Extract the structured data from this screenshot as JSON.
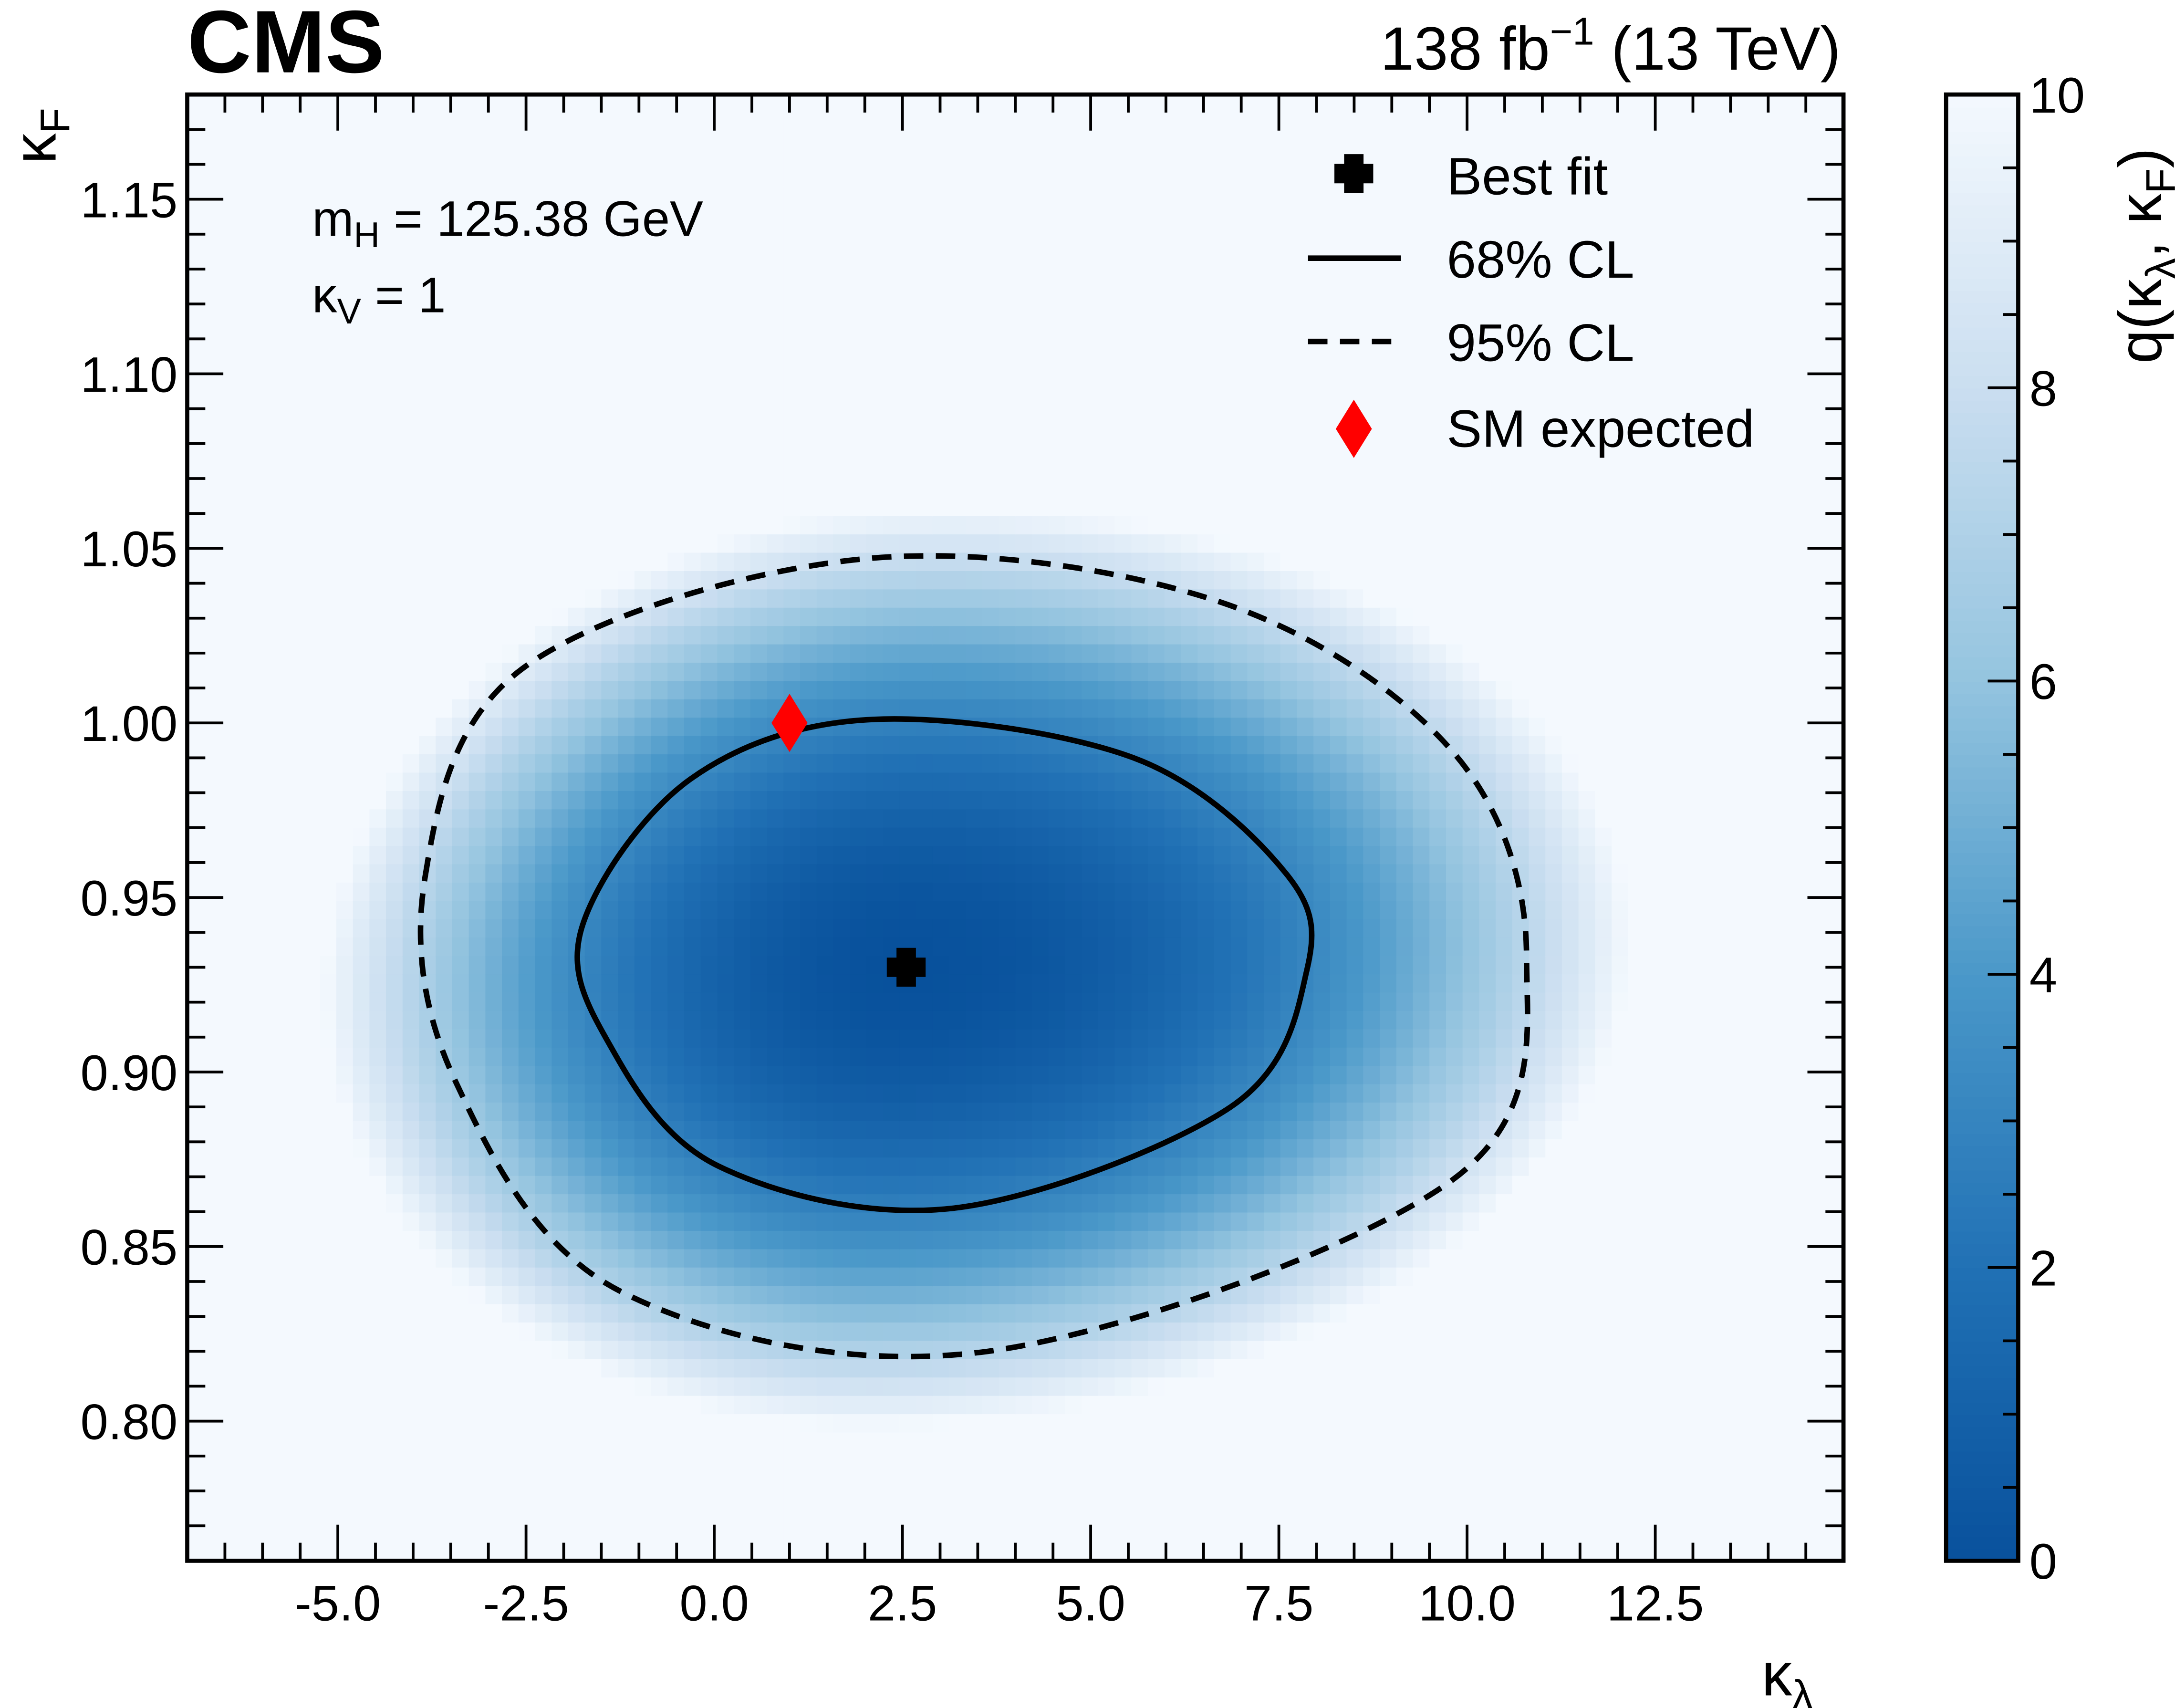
{
  "chart_data": {
    "type": "heatmap",
    "experiment": "CMS",
    "lumi_label": "138 fb",
    "lumi_exp": "−1",
    "energy_label": " (13 TeV)",
    "xlabel": "κ",
    "xlabel_sub": "λ",
    "ylabel": "κ",
    "ylabel_sub": "F",
    "zlabel": "q(κ",
    "zlabel_sub1": "λ",
    "zlabel_mid": ", κ",
    "zlabel_sub2": "F",
    "zlabel_end": ")",
    "xlim": [
      -7,
      15
    ],
    "ylim": [
      0.76,
      1.18
    ],
    "zlim": [
      0,
      10
    ],
    "xticks": [
      "-5.0",
      "-2.5",
      "0.0",
      "2.5",
      "5.0",
      "7.5",
      "10.0",
      "12.5"
    ],
    "yticks": [
      "0.80",
      "0.85",
      "0.90",
      "0.95",
      "1.00",
      "1.05",
      "1.10",
      "1.15"
    ],
    "zticks": [
      "0",
      "2",
      "4",
      "6",
      "8",
      "10"
    ],
    "annotations": {
      "mass_label": "m",
      "mass_sub": "H",
      "mass_value": " = 125.38 GeV",
      "kv_label": "κ",
      "kv_sub": "V",
      "kv_value": " = 1"
    },
    "legend": {
      "placement": "top-right",
      "entries": [
        "Best fit",
        "68% CL",
        "95% CL",
        "SM expected"
      ]
    },
    "best_fit": {
      "x": 2.55,
      "y": 0.93
    },
    "sm_expected": {
      "x": 1.0,
      "y": 1.0
    },
    "contour_68": [
      [
        -1.75,
        0.942
      ],
      [
        -0.31,
        0.984
      ],
      [
        2.11,
        1.001
      ],
      [
        5.57,
        0.99
      ],
      [
        7.59,
        0.957
      ],
      [
        7.87,
        0.929
      ],
      [
        6.86,
        0.89
      ],
      [
        3.18,
        0.861
      ],
      [
        0.06,
        0.873
      ],
      [
        -1.42,
        0.909
      ]
    ],
    "contour_95": [
      [
        -3.84,
        0.956
      ],
      [
        -2.52,
        1.016
      ],
      [
        1.99,
        1.047
      ],
      [
        6.67,
        1.035
      ],
      [
        9.8,
        0.992
      ],
      [
        10.79,
        0.933
      ],
      [
        9.8,
        0.869
      ],
      [
        3.64,
        0.82
      ],
      [
        -1.23,
        0.837
      ],
      [
        -3.43,
        0.897
      ]
    ],
    "colormap": [
      "#08519c",
      "#2171b5",
      "#4a98c9",
      "#94c4df",
      "#cadef0",
      "#f4f9fe"
    ],
    "marker_color": "#ff0000"
  }
}
